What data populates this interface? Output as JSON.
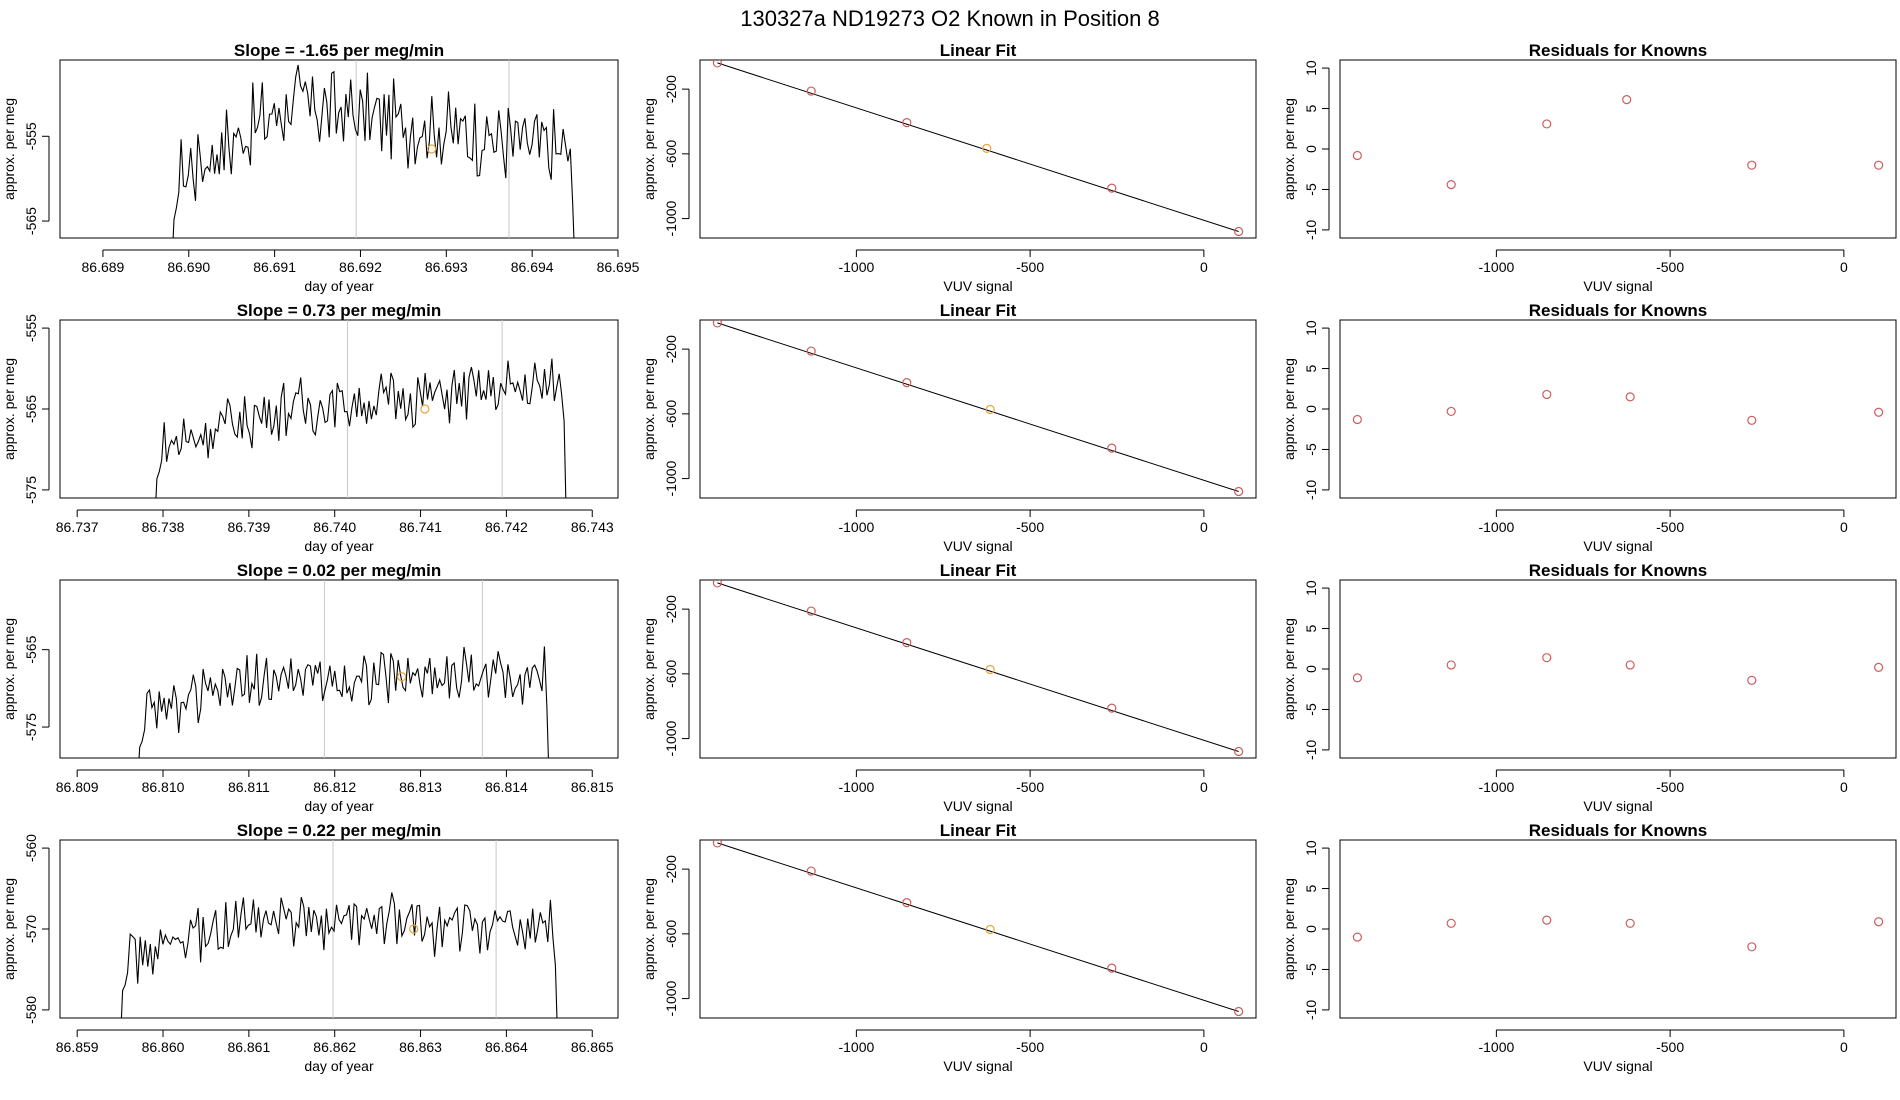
{
  "figure": {
    "title": "130327a     ND19273   O2 Known in Position  8"
  },
  "colors": {
    "trace": "#000000",
    "marker_known": "#cd5c5c",
    "marker_highlight": "#e8a33c",
    "vline": "#c8c8c8"
  },
  "chart_data": [
    {
      "type": "line",
      "row": 0,
      "panel": "timeseries",
      "title": "Slope =  -1.65  per meg/min",
      "xlabel": "day of year",
      "ylabel": "approx. per meg",
      "xlim": [
        86.6885,
        86.695
      ],
      "ylim": [
        -567,
        -546
      ],
      "xticks": [
        86.689,
        86.69,
        86.691,
        86.692,
        86.693,
        86.694,
        86.695
      ],
      "xtick_labels": [
        "86.689",
        "86.690",
        "86.691",
        "86.692",
        "86.693",
        "86.694",
        "86.695"
      ],
      "yticks": [
        -555,
        -565
      ],
      "ytick_labels": [
        "-555",
        "-565"
      ],
      "x_start": 86.6898,
      "x_end": 86.6945,
      "n_points": 170,
      "level_start": -560,
      "level_peak": -551,
      "level_end": -557,
      "noise": 4,
      "vlines": [
        86.69195,
        86.69373
      ],
      "highlight_point": {
        "x": 86.69283,
        "y": -556.5
      }
    },
    {
      "type": "scatter",
      "row": 0,
      "panel": "fit",
      "title": "Linear Fit",
      "xlabel": "VUV signal",
      "ylabel": "approx. per meg",
      "xlim": [
        -1450,
        150
      ],
      "ylim": [
        -1120,
        -20
      ],
      "xticks": [
        -1000,
        -500,
        0
      ],
      "xtick_labels": [
        "-1000",
        "-500",
        "0"
      ],
      "yticks": [
        -200,
        -600,
        -1000
      ],
      "ytick_labels": [
        "-200",
        "-600",
        "-1000"
      ],
      "x": [
        -1400,
        -1130,
        -855,
        -625,
        -265,
        100
      ],
      "y": [
        -38,
        -212,
        -407,
        -566,
        -812,
        -1080
      ],
      "highlight_index": 3,
      "fit_line": {
        "x": [
          -1400,
          100
        ],
        "y": [
          -38,
          -1080
        ]
      }
    },
    {
      "type": "scatter",
      "row": 0,
      "panel": "residuals",
      "title": "Residuals for Knowns",
      "xlabel": "VUV signal",
      "ylabel": "approx. per meg",
      "xlim": [
        -1450,
        150
      ],
      "ylim": [
        -11,
        11
      ],
      "xticks": [
        -1000,
        -500,
        0
      ],
      "xtick_labels": [
        "-1000",
        "-500",
        "0"
      ],
      "yticks": [
        10,
        5,
        0,
        -5,
        -10
      ],
      "ytick_labels": [
        "10",
        "5",
        "0",
        "-5",
        "-10"
      ],
      "x": [
        -1400,
        -1130,
        -855,
        -625,
        -265,
        100
      ],
      "y": [
        -0.8,
        -4.4,
        3.1,
        6.1,
        -2.0,
        -2.0
      ]
    },
    {
      "type": "line",
      "row": 1,
      "panel": "timeseries",
      "title": "Slope =  0.73  per meg/min",
      "xlabel": "day of year",
      "ylabel": "approx. per meg",
      "xlim": [
        86.7368,
        86.7433
      ],
      "ylim": [
        -576,
        -554
      ],
      "xticks": [
        86.737,
        86.738,
        86.739,
        86.74,
        86.741,
        86.742,
        86.743
      ],
      "xtick_labels": [
        "86.737",
        "86.738",
        "86.739",
        "86.740",
        "86.741",
        "86.742",
        "86.743"
      ],
      "yticks": [
        -555,
        -565,
        -575
      ],
      "ytick_labels": [
        "-555",
        "-565",
        "-575"
      ],
      "x_start": 86.7379,
      "x_end": 86.7427,
      "n_points": 170,
      "level_start": -570,
      "level_peak": -565,
      "level_end": -562,
      "noise": 3,
      "vlines": [
        86.74015,
        86.74195
      ],
      "highlight_point": {
        "x": 86.74105,
        "y": -565
      }
    },
    {
      "type": "scatter",
      "row": 1,
      "panel": "fit",
      "title": "Linear Fit",
      "xlabel": "VUV signal",
      "ylabel": "approx. per meg",
      "xlim": [
        -1450,
        150
      ],
      "ylim": [
        -1120,
        -20
      ],
      "xticks": [
        -1000,
        -500,
        0
      ],
      "xtick_labels": [
        "-1000",
        "-500",
        "0"
      ],
      "yticks": [
        -200,
        -600,
        -1000
      ],
      "ytick_labels": [
        "-200",
        "-600",
        "-1000"
      ],
      "x": [
        -1400,
        -1130,
        -855,
        -615,
        -265,
        100
      ],
      "y": [
        -38,
        -212,
        -407,
        -573,
        -812,
        -1080
      ],
      "highlight_index": 3,
      "fit_line": {
        "x": [
          -1400,
          100
        ],
        "y": [
          -38,
          -1080
        ]
      }
    },
    {
      "type": "scatter",
      "row": 1,
      "panel": "residuals",
      "title": "Residuals for Knowns",
      "xlabel": "VUV signal",
      "ylabel": "approx. per meg",
      "xlim": [
        -1450,
        150
      ],
      "ylim": [
        -11,
        11
      ],
      "xticks": [
        -1000,
        -500,
        0
      ],
      "xtick_labels": [
        "-1000",
        "-500",
        "0"
      ],
      "yticks": [
        10,
        5,
        0,
        -5,
        -10
      ],
      "ytick_labels": [
        "10",
        "5",
        "0",
        "-5",
        "-10"
      ],
      "x": [
        -1400,
        -1130,
        -855,
        -615,
        -265,
        100
      ],
      "y": [
        -1.3,
        -0.3,
        1.8,
        1.5,
        -1.4,
        -0.4
      ]
    },
    {
      "type": "line",
      "row": 2,
      "panel": "timeseries",
      "title": "Slope =  0.02  per meg/min",
      "xlabel": "day of year",
      "ylabel": "approx. per meg",
      "xlim": [
        86.8088,
        86.8153
      ],
      "ylim": [
        -579,
        -556
      ],
      "xticks": [
        86.809,
        86.81,
        86.811,
        86.812,
        86.813,
        86.814,
        86.815
      ],
      "xtick_labels": [
        "86.809",
        "86.810",
        "86.811",
        "86.812",
        "86.813",
        "86.814",
        "86.815"
      ],
      "yticks": [
        -565,
        -575
      ],
      "ytick_labels": [
        "-565",
        "-575"
      ],
      "x_start": 86.8097,
      "x_end": 86.8145,
      "n_points": 170,
      "level_start": -574,
      "level_peak": -569,
      "level_end": -568,
      "noise": 3,
      "vlines": [
        86.81188,
        86.81372
      ],
      "highlight_point": {
        "x": 86.81278,
        "y": -568.5
      }
    },
    {
      "type": "scatter",
      "row": 2,
      "panel": "fit",
      "title": "Linear Fit",
      "xlabel": "VUV signal",
      "ylabel": "approx. per meg",
      "xlim": [
        -1450,
        150
      ],
      "ylim": [
        -1120,
        -20
      ],
      "xticks": [
        -1000,
        -500,
        0
      ],
      "xtick_labels": [
        "-1000",
        "-500",
        "0"
      ],
      "yticks": [
        -200,
        -600,
        -1000
      ],
      "ytick_labels": [
        "-200",
        "-600",
        "-1000"
      ],
      "x": [
        -1400,
        -1130,
        -855,
        -615,
        -265,
        100
      ],
      "y": [
        -38,
        -212,
        -407,
        -573,
        -812,
        -1080
      ],
      "highlight_index": 3,
      "fit_line": {
        "x": [
          -1400,
          100
        ],
        "y": [
          -38,
          -1080
        ]
      }
    },
    {
      "type": "scatter",
      "row": 2,
      "panel": "residuals",
      "title": "Residuals for Knowns",
      "xlabel": "VUV signal",
      "ylabel": "approx. per meg",
      "xlim": [
        -1450,
        150
      ],
      "ylim": [
        -11,
        11
      ],
      "xticks": [
        -1000,
        -500,
        0
      ],
      "xtick_labels": [
        "-1000",
        "-500",
        "0"
      ],
      "yticks": [
        10,
        5,
        0,
        -5,
        -10
      ],
      "ytick_labels": [
        "10",
        "5",
        "0",
        "-5",
        "-10"
      ],
      "x": [
        -1400,
        -1130,
        -855,
        -615,
        -265,
        100
      ],
      "y": [
        -1.1,
        0.5,
        1.4,
        0.5,
        -1.4,
        0.2
      ]
    },
    {
      "type": "line",
      "row": 3,
      "panel": "timeseries",
      "title": "Slope =  0.22  per meg/min",
      "xlabel": "day of year",
      "ylabel": "approx. per meg",
      "xlim": [
        86.8588,
        86.8653
      ],
      "ylim": [
        -581,
        -559
      ],
      "xticks": [
        86.859,
        86.86,
        86.861,
        86.862,
        86.863,
        86.864,
        86.865
      ],
      "xtick_labels": [
        "86.859",
        "86.860",
        "86.861",
        "86.862",
        "86.863",
        "86.864",
        "86.865"
      ],
      "yticks": [
        -560,
        -570,
        -580
      ],
      "ytick_labels": [
        "-560",
        "-570",
        "-580"
      ],
      "x_start": 86.8595,
      "x_end": 86.8646,
      "n_points": 175,
      "level_start": -574,
      "level_peak": -569,
      "level_end": -570,
      "noise": 3,
      "vlines": [
        86.86198,
        86.86388
      ],
      "highlight_point": {
        "x": 86.86292,
        "y": -570
      }
    },
    {
      "type": "scatter",
      "row": 3,
      "panel": "fit",
      "title": "Linear Fit",
      "xlabel": "VUV signal",
      "ylabel": "approx. per meg",
      "xlim": [
        -1450,
        150
      ],
      "ylim": [
        -1120,
        -20
      ],
      "xticks": [
        -1000,
        -500,
        0
      ],
      "xtick_labels": [
        "-1000",
        "-500",
        "0"
      ],
      "yticks": [
        -200,
        -600,
        -1000
      ],
      "ytick_labels": [
        "-200",
        "-600",
        "-1000"
      ],
      "x": [
        -1400,
        -1130,
        -855,
        -615,
        -265,
        100
      ],
      "y": [
        -38,
        -212,
        -407,
        -573,
        -812,
        -1080
      ],
      "highlight_index": 3,
      "fit_line": {
        "x": [
          -1400,
          100
        ],
        "y": [
          -38,
          -1080
        ]
      }
    },
    {
      "type": "scatter",
      "row": 3,
      "panel": "residuals",
      "title": "Residuals for Knowns",
      "xlabel": "VUV signal",
      "ylabel": "approx. per meg",
      "xlim": [
        -1450,
        150
      ],
      "ylim": [
        -11,
        11
      ],
      "xticks": [
        -1000,
        -500,
        0
      ],
      "xtick_labels": [
        "-1000",
        "-500",
        "0"
      ],
      "yticks": [
        10,
        5,
        0,
        -5,
        -10
      ],
      "ytick_labels": [
        "10",
        "5",
        "0",
        "-5",
        "-10"
      ],
      "x": [
        -1400,
        -1130,
        -855,
        -615,
        -265,
        100
      ],
      "y": [
        -1.0,
        0.7,
        1.1,
        0.7,
        -2.2,
        0.9
      ]
    }
  ]
}
